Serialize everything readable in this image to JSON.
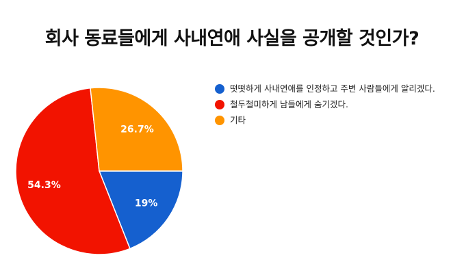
{
  "chart_data": {
    "type": "pie",
    "title": "회사 동료들에게 사내연애 사실을 공개할 것인가?",
    "legend_position": "right",
    "slices": [
      {
        "label": "떳떳하게 사내연애를 인정하고 주변 사람들에게 알리겠다.",
        "value": 19,
        "value_label": "19%",
        "color": "#1560CF"
      },
      {
        "label": "철두철미하게 남들에게 숨기겠다.",
        "value": 54.3,
        "value_label": "54.3%",
        "color": "#F21300"
      },
      {
        "label": "기타",
        "value": 26.7,
        "value_label": "26.7%",
        "color": "#FF9400"
      }
    ]
  }
}
